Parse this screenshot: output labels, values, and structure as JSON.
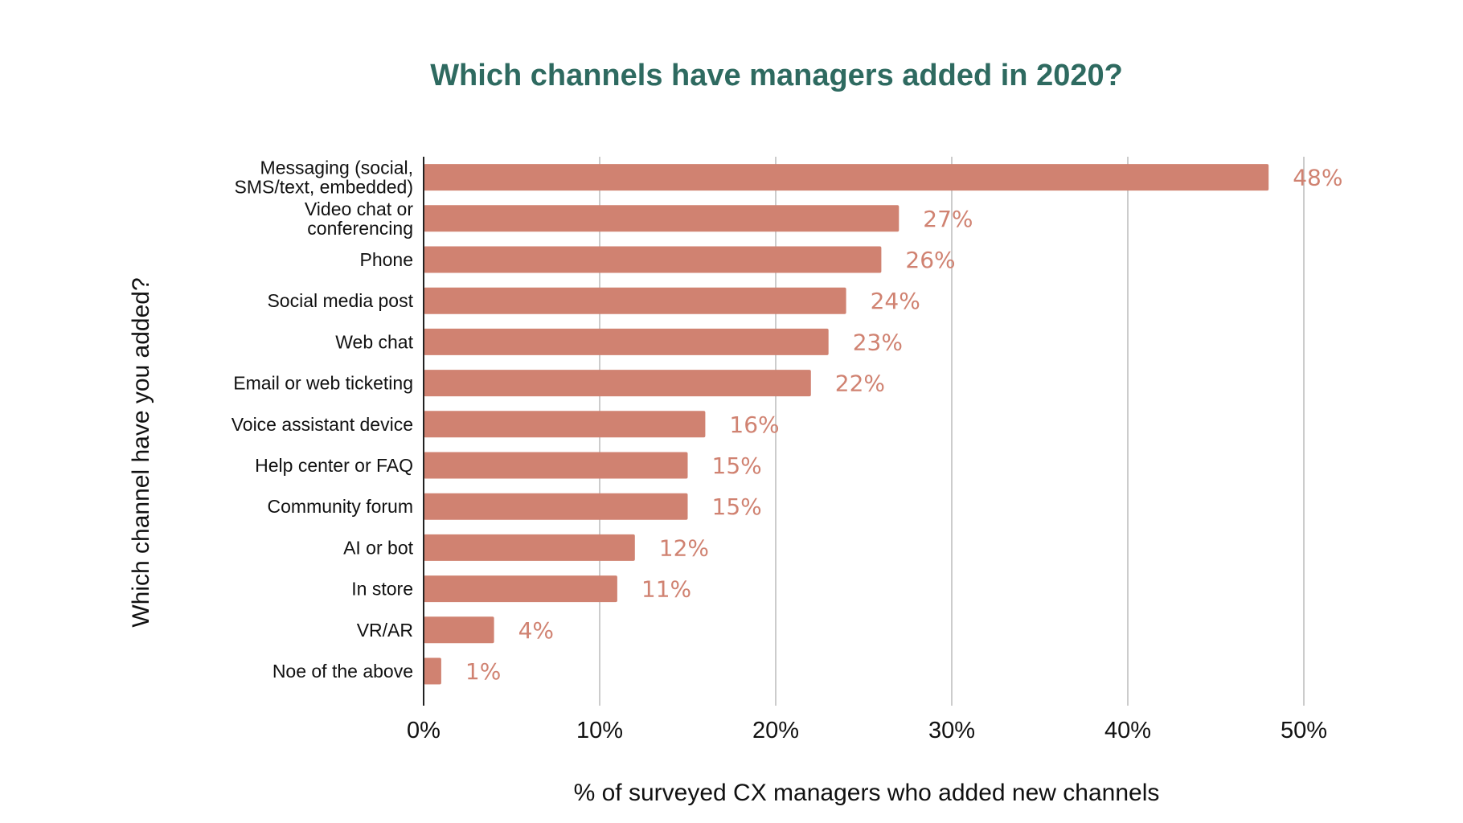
{
  "chart_data": {
    "type": "bar",
    "orientation": "horizontal",
    "title": "Which channels have managers added in 2020?",
    "xlabel": "% of surveyed CX managers who added new channels",
    "ylabel": "Which channel have you added?",
    "categories": [
      [
        "Messaging (social,",
        "SMS/text, embedded)"
      ],
      [
        "Video chat or",
        "conferencing"
      ],
      [
        "Phone"
      ],
      [
        "Social media post"
      ],
      [
        "Web chat"
      ],
      [
        "Email or web ticketing"
      ],
      [
        "Voice assistant device"
      ],
      [
        "Help center or FAQ"
      ],
      [
        "Community forum"
      ],
      [
        "AI or bot"
      ],
      [
        "In store"
      ],
      [
        "VR/AR"
      ],
      [
        "Noe of the above"
      ]
    ],
    "values": [
      48,
      27,
      26,
      24,
      23,
      22,
      16,
      15,
      15,
      12,
      11,
      4,
      1
    ],
    "data_labels": [
      "48%",
      "27%",
      "26%",
      "24%",
      "23%",
      "22%",
      "16%",
      "15%",
      "15%",
      "12%",
      "11%",
      "4%",
      "1%"
    ],
    "xlim": [
      0,
      50
    ],
    "xticks": [
      0,
      10,
      20,
      30,
      40,
      50
    ],
    "xtick_labels": [
      "0%",
      "10%",
      "20%",
      "30%",
      "40%",
      "50%"
    ],
    "grid": "vertical",
    "legend": "none",
    "colors": {
      "bar": "#d08271",
      "data_label": "#d08271",
      "title": "#2e6a60",
      "gridline": "#cccccc",
      "axis": "#222222"
    }
  }
}
